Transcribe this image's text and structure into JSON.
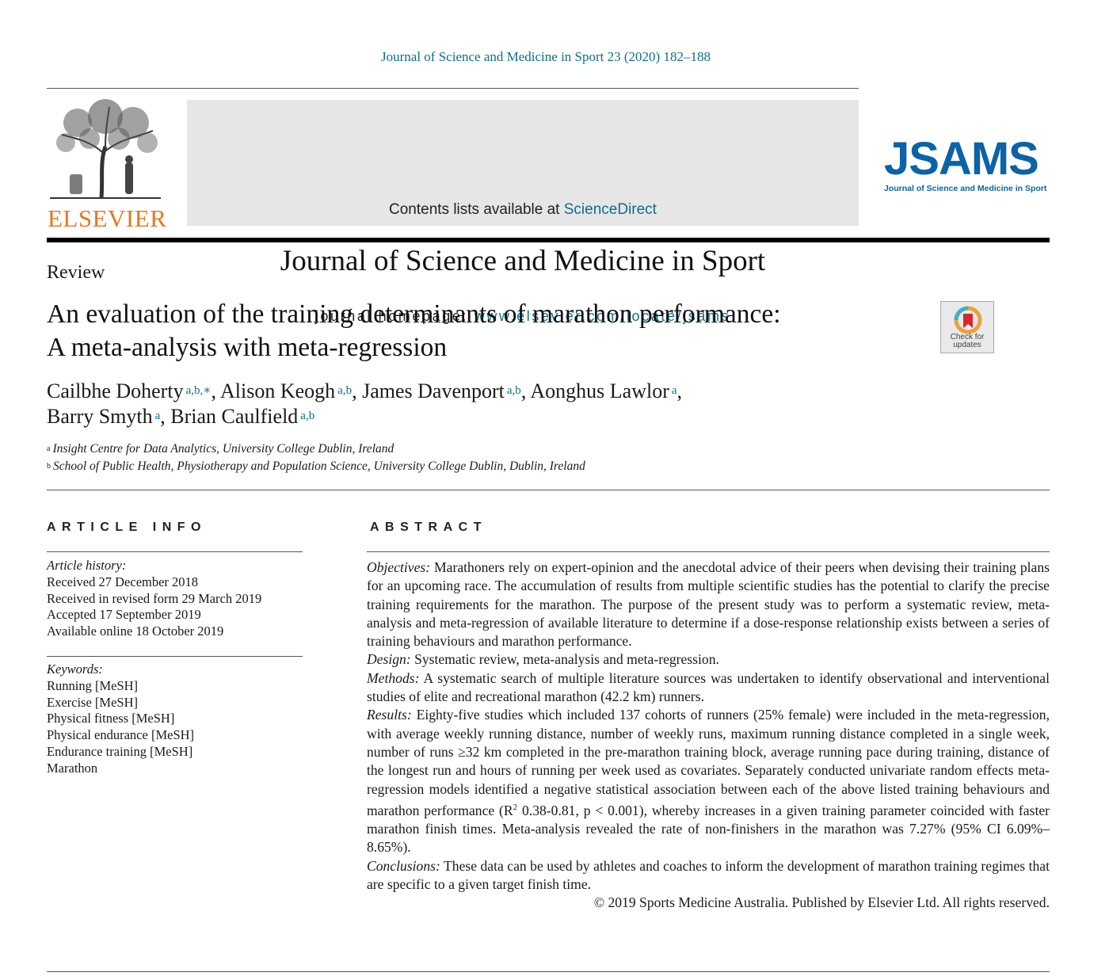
{
  "header": {
    "journal_ref": "Journal of Science and Medicine in Sport 23 (2020) 182–188",
    "contents_prefix": "Contents lists available at ",
    "contents_link": "ScienceDirect",
    "journal_name": "Journal of Science and Medicine in Sport",
    "homepage_prefix": "journal homepage: ",
    "homepage_link": "www.elsevier.com/locate/jsams",
    "publisher_logo_text": "ELSEVIER",
    "jsams_logo_text": "JSAMS",
    "jsams_logo_subtitle": "Journal of Science and Medicine in Sport",
    "check_updates_label_1": "Check for",
    "check_updates_label_2": "updates"
  },
  "article": {
    "type": "Review",
    "title_line1": "An evaluation of the training determinants of marathon performance:",
    "title_line2": "A meta-analysis with meta-regression",
    "authors": [
      {
        "name": "Cailbhe Doherty",
        "aff": "a,b,∗",
        "sep": ", "
      },
      {
        "name": "Alison Keogh",
        "aff": "a,b",
        "sep": ", "
      },
      {
        "name": "James Davenport",
        "aff": "a,b",
        "sep": ", "
      },
      {
        "name": "Aonghus Lawlor",
        "aff": "a",
        "sep": ","
      },
      {
        "name": "Barry Smyth",
        "aff": "a",
        "sep": ", "
      },
      {
        "name": "Brian Caulfield",
        "aff": "a,b",
        "sep": ""
      }
    ],
    "affiliations": [
      {
        "mark": "a",
        "text": "Insight Centre for Data Analytics, University College Dublin, Ireland"
      },
      {
        "mark": "b",
        "text": "School of Public Health, Physiotherapy and Population Science, University College Dublin, Dublin, Ireland"
      }
    ]
  },
  "article_info": {
    "heading": "ARTICLE INFO",
    "history_label": "Article history:",
    "history": [
      "Received 27 December 2018",
      "Received in revised form 29 March 2019",
      "Accepted 17 September 2019",
      "Available online 18 October 2019"
    ],
    "keywords_label": "Keywords:",
    "keywords": [
      "Running [MeSH]",
      "Exercise [MeSH]",
      "Physical fitness [MeSH]",
      "Physical endurance [MeSH]",
      "Endurance training [MeSH]",
      "Marathon"
    ]
  },
  "abstract": {
    "heading": "ABSTRACT",
    "objectives_label": "Objectives:",
    "objectives": " Marathoners rely on expert-opinion and the anecdotal advice of their peers when devising their training plans for an upcoming race. The accumulation of results from multiple scientific studies has the potential to clarify the precise training requirements for the marathon. The purpose of the present study was to perform a systematic review, meta-analysis and meta-regression of available literature to determine if a dose-response relationship exists between a series of training behaviours and marathon performance.",
    "design_label": "Design:",
    "design": " Systematic review, meta-analysis and meta-regression.",
    "methods_label": "Methods:",
    "methods": " A systematic search of multiple literature sources was undertaken to identify observational and interventional studies of elite and recreational marathon (42.2 km) runners.",
    "results_label": "Results:",
    "results_a": " Eighty-five studies which included 137 cohorts of runners (25% female) were included in the meta-regression, with average weekly running distance, number of weekly runs, maximum running distance completed in a single week, number of runs ≥32 km completed in the pre-marathon training block, average running pace during training, distance of the longest run and hours of running per week used as covariates. Separately conducted univariate random effects meta-regression models identified a negative statistical association between each of the above listed training behaviours and marathon performance (R",
    "results_sup": "2",
    "results_b": " 0.38-0.81, p < 0.001), whereby increases in a given training parameter coincided with faster marathon finish times. Meta-analysis revealed the rate of non-finishers in the marathon was 7.27% (95% CI 6.09%–8.65%).",
    "conclusions_label": "Conclusions:",
    "conclusions": " These data can be used by athletes and coaches to inform the development of marathon training regimes that are specific to a given target finish time.",
    "copyright": "© 2019 Sports Medicine Australia. Published by Elsevier Ltd. All rights reserved."
  }
}
